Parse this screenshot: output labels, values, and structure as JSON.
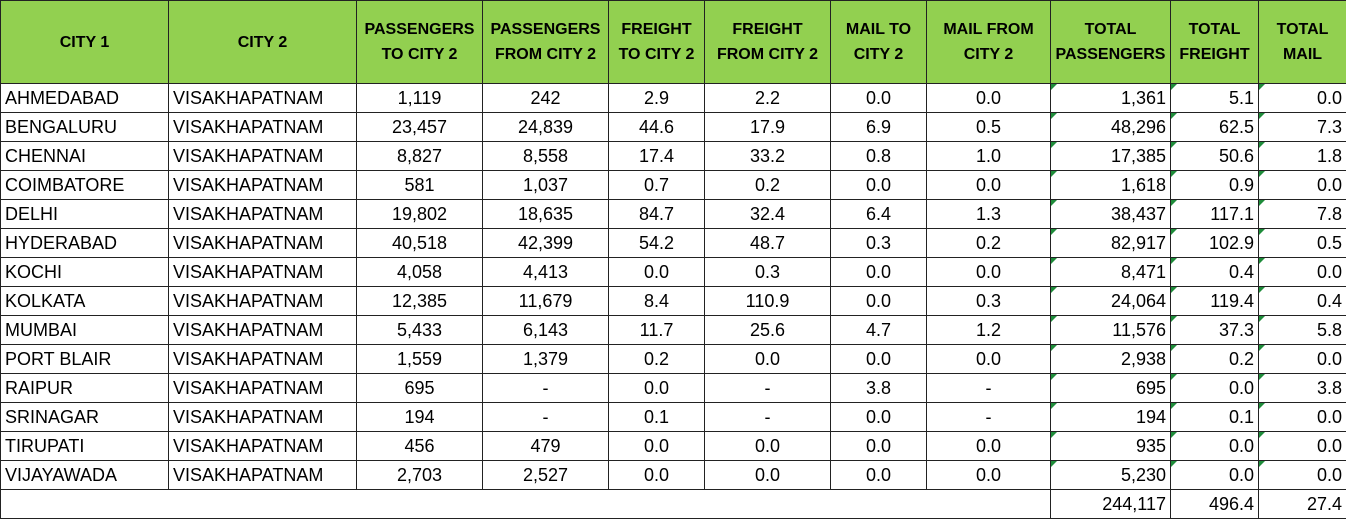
{
  "headers": [
    "CITY 1",
    "CITY 2",
    "PASSENGERS TO CITY 2",
    "PASSENGERS FROM CITY 2",
    "FREIGHT TO CITY 2",
    "FREIGHT FROM CITY 2",
    "MAIL TO CITY 2",
    "MAIL FROM CITY 2",
    "TOTAL PASSENGERS",
    "TOTAL FREIGHT",
    "TOTAL MAIL"
  ],
  "colors": {
    "header_fill": "#92d050",
    "corner_flag": "#1e8c3a"
  },
  "rows": [
    [
      "AHMEDABAD",
      "VISAKHAPATNAM",
      "1,119",
      "242",
      "2.9",
      "2.2",
      "0.0",
      "0.0",
      "1,361",
      "5.1",
      "0.0"
    ],
    [
      "BENGALURU",
      "VISAKHAPATNAM",
      "23,457",
      "24,839",
      "44.6",
      "17.9",
      "6.9",
      "0.5",
      "48,296",
      "62.5",
      "7.3"
    ],
    [
      "CHENNAI",
      "VISAKHAPATNAM",
      "8,827",
      "8,558",
      "17.4",
      "33.2",
      "0.8",
      "1.0",
      "17,385",
      "50.6",
      "1.8"
    ],
    [
      "COIMBATORE",
      "VISAKHAPATNAM",
      "581",
      "1,037",
      "0.7",
      "0.2",
      "0.0",
      "0.0",
      "1,618",
      "0.9",
      "0.0"
    ],
    [
      "DELHI",
      "VISAKHAPATNAM",
      "19,802",
      "18,635",
      "84.7",
      "32.4",
      "6.4",
      "1.3",
      "38,437",
      "117.1",
      "7.8"
    ],
    [
      "HYDERABAD",
      "VISAKHAPATNAM",
      "40,518",
      "42,399",
      "54.2",
      "48.7",
      "0.3",
      "0.2",
      "82,917",
      "102.9",
      "0.5"
    ],
    [
      "KOCHI",
      "VISAKHAPATNAM",
      "4,058",
      "4,413",
      "0.0",
      "0.3",
      "0.0",
      "0.0",
      "8,471",
      "0.4",
      "0.0"
    ],
    [
      "KOLKATA",
      "VISAKHAPATNAM",
      "12,385",
      "11,679",
      "8.4",
      "110.9",
      "0.0",
      "0.3",
      "24,064",
      "119.4",
      "0.4"
    ],
    [
      "MUMBAI",
      "VISAKHAPATNAM",
      "5,433",
      "6,143",
      "11.7",
      "25.6",
      "4.7",
      "1.2",
      "11,576",
      "37.3",
      "5.8"
    ],
    [
      "PORT BLAIR",
      "VISAKHAPATNAM",
      "1,559",
      "1,379",
      "0.2",
      "0.0",
      "0.0",
      "0.0",
      "2,938",
      "0.2",
      "0.0"
    ],
    [
      "RAIPUR",
      "VISAKHAPATNAM",
      "695",
      "-",
      "0.0",
      "-",
      "3.8",
      "-",
      "695",
      "0.0",
      "3.8"
    ],
    [
      "SRINAGAR",
      "VISAKHAPATNAM",
      "194",
      "-",
      "0.1",
      "-",
      "0.0",
      "-",
      "194",
      "0.1",
      "0.0"
    ],
    [
      "TIRUPATI",
      "VISAKHAPATNAM",
      "456",
      "479",
      "0.0",
      "0.0",
      "0.0",
      "0.0",
      "935",
      "0.0",
      "0.0"
    ],
    [
      "VIJAYAWADA",
      "VISAKHAPATNAM",
      "2,703",
      "2,527",
      "0.0",
      "0.0",
      "0.0",
      "0.0",
      "5,230",
      "0.0",
      "0.0"
    ]
  ],
  "totals": {
    "passengers": "244,117",
    "freight": "496.4",
    "mail": "27.4"
  }
}
